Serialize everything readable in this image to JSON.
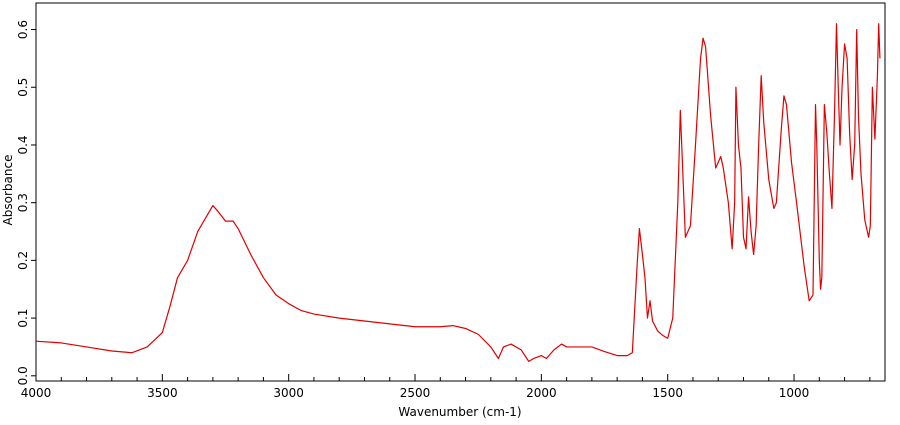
{
  "chart_data": {
    "type": "line",
    "xlabel": "Wavenumber (cm-1)",
    "ylabel": "Absorbance",
    "xlim": [
      4000,
      640
    ],
    "ylim": [
      -0.009,
      0.646
    ],
    "xticks": [
      4000,
      3500,
      3000,
      2500,
      2000,
      1500,
      1000
    ],
    "xminorticks": [
      3900,
      3800,
      3700,
      3600,
      3400,
      3300,
      3200,
      3100,
      2900,
      2800,
      2700,
      2600,
      2400,
      2300,
      2200,
      2100,
      1900,
      1800,
      1700,
      1600,
      1400,
      1300,
      1200,
      1100,
      900,
      800,
      700
    ],
    "yticks": [
      {
        "value": 0,
        "label": "0.0"
      },
      0.1,
      0.2,
      0.3,
      0.4,
      0.5,
      0.6
    ],
    "grid": false,
    "series": [
      {
        "color": "#e00000",
        "x": [
          4000,
          3900,
          3800,
          3700,
          3620,
          3560,
          3500,
          3470,
          3440,
          3400,
          3360,
          3320,
          3300,
          3280,
          3250,
          3220,
          3200,
          3150,
          3100,
          3050,
          3000,
          2950,
          2900,
          2800,
          2700,
          2600,
          2500,
          2400,
          2350,
          2300,
          2250,
          2200,
          2170,
          2150,
          2120,
          2080,
          2050,
          2030,
          2000,
          1980,
          1950,
          1920,
          1900,
          1800,
          1750,
          1700,
          1660,
          1640,
          1620,
          1612,
          1600,
          1590,
          1580,
          1570,
          1560,
          1540,
          1520,
          1500,
          1480,
          1460,
          1450,
          1440,
          1430,
          1410,
          1390,
          1370,
          1360,
          1350,
          1330,
          1310,
          1300,
          1290,
          1280,
          1260,
          1245,
          1235,
          1230,
          1220,
          1210,
          1200,
          1190,
          1180,
          1170,
          1160,
          1150,
          1140,
          1130,
          1120,
          1100,
          1080,
          1070,
          1050,
          1040,
          1030,
          1010,
          990,
          960,
          940,
          925,
          915,
          910,
          900,
          895,
          890,
          880,
          870,
          860,
          850,
          840,
          832,
          825,
          818,
          810,
          800,
          790,
          780,
          770,
          760,
          752,
          745,
          735,
          720,
          705,
          698,
          690,
          680,
          670,
          665,
          660
        ],
        "values": [
          0.06,
          0.057,
          0.05,
          0.043,
          0.04,
          0.05,
          0.075,
          0.12,
          0.17,
          0.2,
          0.25,
          0.28,
          0.295,
          0.285,
          0.268,
          0.268,
          0.255,
          0.21,
          0.17,
          0.14,
          0.125,
          0.113,
          0.107,
          0.1,
          0.095,
          0.09,
          0.085,
          0.085,
          0.087,
          0.082,
          0.072,
          0.05,
          0.03,
          0.05,
          0.055,
          0.045,
          0.025,
          0.03,
          0.035,
          0.03,
          0.045,
          0.055,
          0.05,
          0.05,
          0.042,
          0.035,
          0.035,
          0.04,
          0.2,
          0.255,
          0.21,
          0.17,
          0.1,
          0.13,
          0.095,
          0.078,
          0.07,
          0.065,
          0.1,
          0.3,
          0.46,
          0.35,
          0.24,
          0.26,
          0.4,
          0.55,
          0.585,
          0.57,
          0.45,
          0.36,
          0.37,
          0.38,
          0.36,
          0.3,
          0.22,
          0.3,
          0.5,
          0.4,
          0.36,
          0.24,
          0.22,
          0.31,
          0.25,
          0.21,
          0.26,
          0.4,
          0.52,
          0.44,
          0.34,
          0.29,
          0.3,
          0.43,
          0.485,
          0.47,
          0.37,
          0.3,
          0.19,
          0.13,
          0.14,
          0.47,
          0.4,
          0.2,
          0.15,
          0.17,
          0.47,
          0.42,
          0.35,
          0.29,
          0.45,
          0.61,
          0.5,
          0.4,
          0.5,
          0.575,
          0.55,
          0.42,
          0.34,
          0.4,
          0.6,
          0.45,
          0.35,
          0.27,
          0.24,
          0.26,
          0.5,
          0.41,
          0.52,
          0.61,
          0.55
        ]
      }
    ]
  }
}
